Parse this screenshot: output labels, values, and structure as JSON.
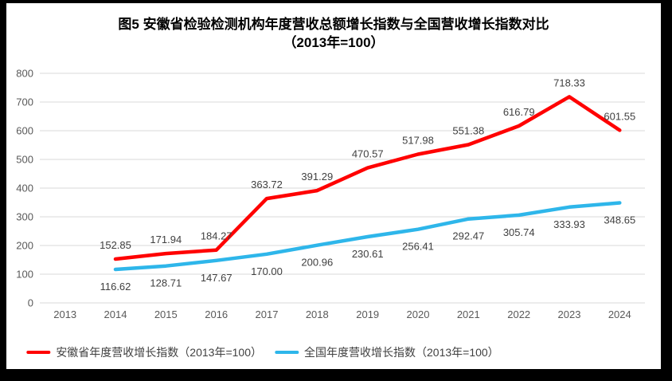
{
  "title": {
    "line1": "图5  安徽省检验检测机构年度营收总额增长指数与全国营收增长指数对比",
    "line2": "（2013年=100）"
  },
  "colors": {
    "frame_border": "#000000",
    "panel_background": "#ffffff",
    "gridline": "#d9d9d9",
    "axis_label": "#595959",
    "data_label": "#404040",
    "series_anhui": "#ff0000",
    "series_national": "#2eb6ea"
  },
  "chart_data": {
    "type": "line",
    "title": "图5  安徽省检验检测机构年度营收总额增长指数与全国营收增长指数对比（2013年=100）",
    "categories": [
      "2013",
      "2014",
      "2015",
      "2016",
      "2017",
      "2018",
      "2019",
      "2020",
      "2021",
      "2022",
      "2023",
      "2024"
    ],
    "series": [
      {
        "name": "安徽省年度营收增长指数（2013年=100）",
        "color": "#ff0000",
        "label_position": "above",
        "values": [
          null,
          152.85,
          171.94,
          184.27,
          363.72,
          391.29,
          470.57,
          517.98,
          551.38,
          616.79,
          718.33,
          601.55
        ]
      },
      {
        "name": "全国年度营收增长指数（2013年=100）",
        "color": "#2eb6ea",
        "label_position": "below",
        "values": [
          null,
          116.62,
          128.71,
          147.67,
          170.0,
          200.96,
          230.61,
          256.41,
          292.47,
          305.74,
          333.93,
          348.65
        ]
      }
    ],
    "xlabel": "",
    "ylabel": "",
    "ylim": [
      0,
      800
    ],
    "ytick_step": 100,
    "grid": "horizontal",
    "legend_position": "bottom",
    "data_label_decimals": 2
  }
}
